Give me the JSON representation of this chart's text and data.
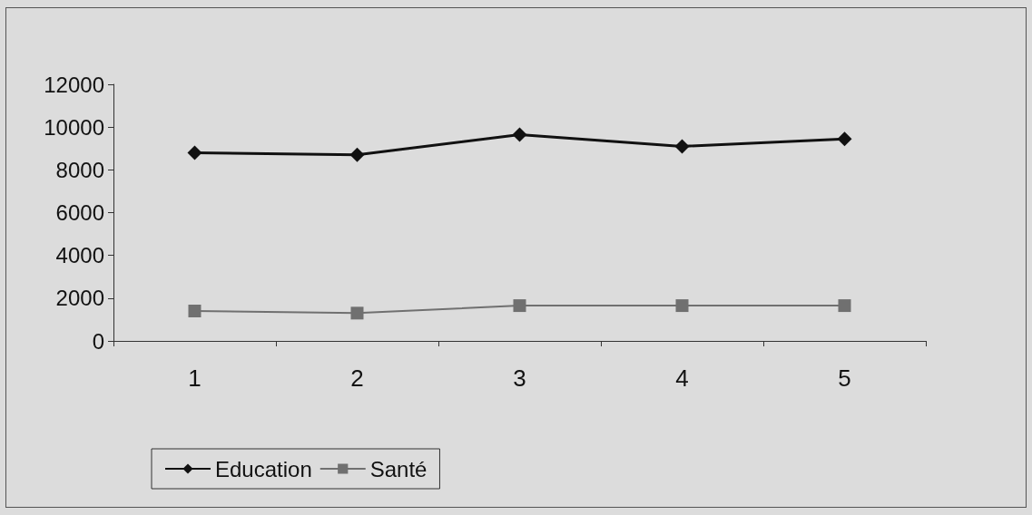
{
  "chart_data": {
    "type": "line",
    "categories": [
      "1",
      "2",
      "3",
      "4",
      "5"
    ],
    "series": [
      {
        "name": "Education",
        "color": "#111111",
        "marker": "diamond",
        "values": [
          8800,
          8700,
          9650,
          9100,
          9450
        ]
      },
      {
        "name": "Santé",
        "color": "#707070",
        "marker": "square",
        "values": [
          1400,
          1300,
          1650,
          1650,
          1650
        ]
      }
    ],
    "ylim": [
      0,
      12000
    ],
    "yticks": [
      0,
      2000,
      4000,
      6000,
      8000,
      10000,
      12000
    ],
    "grid": false,
    "legend": "bottom left",
    "line_style": "solid"
  }
}
